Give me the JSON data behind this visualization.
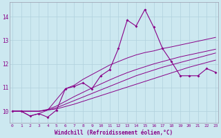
{
  "background_color": "#cce8f0",
  "line_color": "#880088",
  "grid_color": "#b0d0dc",
  "xlabel": "Windchill (Refroidissement éolien,°C)",
  "ylim": [
    9.5,
    14.6
  ],
  "xlim": [
    -0.3,
    23.3
  ],
  "yticks": [
    10,
    11,
    12,
    13,
    14
  ],
  "xticks": [
    0,
    1,
    2,
    3,
    4,
    5,
    6,
    7,
    8,
    9,
    10,
    11,
    12,
    13,
    14,
    15,
    16,
    17,
    18,
    19,
    20,
    21,
    22,
    23
  ],
  "series": [
    {
      "x": [
        0,
        1,
        2,
        3,
        4,
        5,
        6,
        7,
        8,
        9,
        10,
        11,
        12,
        13,
        14,
        15,
        16,
        17,
        18,
        19,
        20,
        21,
        22,
        23
      ],
      "y": [
        10.0,
        10.0,
        9.8,
        9.9,
        9.75,
        10.05,
        10.95,
        11.05,
        11.2,
        10.95,
        11.5,
        11.75,
        12.65,
        13.85,
        13.6,
        14.3,
        13.55,
        12.65,
        12.1,
        11.5,
        11.5,
        11.5,
        11.8,
        11.65
      ],
      "marker": true
    },
    {
      "x": [
        0,
        1,
        2,
        3,
        4,
        5,
        6,
        7,
        8,
        9,
        10,
        11,
        12,
        13,
        14,
        15,
        16,
        17,
        18,
        19,
        20,
        21,
        22,
        23
      ],
      "y": [
        10.0,
        10.0,
        10.0,
        10.0,
        10.05,
        10.1,
        10.2,
        10.3,
        10.42,
        10.54,
        10.66,
        10.78,
        10.9,
        11.02,
        11.14,
        11.26,
        11.38,
        11.5,
        11.62,
        11.74,
        11.86,
        11.96,
        12.06,
        12.16
      ],
      "marker": false
    },
    {
      "x": [
        0,
        1,
        2,
        3,
        4,
        5,
        6,
        7,
        8,
        9,
        10,
        11,
        12,
        13,
        14,
        15,
        16,
        17,
        18,
        19,
        20,
        21,
        22,
        23
      ],
      "y": [
        10.0,
        10.0,
        10.0,
        10.0,
        10.05,
        10.15,
        10.3,
        10.45,
        10.6,
        10.75,
        10.9,
        11.05,
        11.2,
        11.35,
        11.5,
        11.62,
        11.74,
        11.86,
        11.96,
        12.06,
        12.16,
        12.26,
        12.36,
        12.46
      ],
      "marker": false
    },
    {
      "x": [
        0,
        1,
        2,
        3,
        4,
        5,
        6,
        7,
        8,
        9,
        10,
        11,
        12,
        13,
        14,
        15,
        16,
        17,
        18,
        19,
        20,
        21,
        22,
        23
      ],
      "y": [
        10.0,
        10.0,
        10.0,
        10.0,
        10.08,
        10.22,
        10.42,
        10.62,
        10.8,
        10.98,
        11.15,
        11.32,
        11.48,
        11.63,
        11.76,
        11.88,
        12.0,
        12.1,
        12.2,
        12.3,
        12.38,
        12.46,
        12.54,
        12.62
      ],
      "marker": false
    },
    {
      "x": [
        0,
        1,
        2,
        3,
        4,
        5,
        6,
        7,
        8,
        9,
        10,
        11,
        12,
        13,
        14,
        15,
        16,
        17,
        18,
        19,
        20,
        21,
        22,
        23
      ],
      "y": [
        10.0,
        10.0,
        9.8,
        9.9,
        10.05,
        10.5,
        10.95,
        11.1,
        11.35,
        11.55,
        11.75,
        11.95,
        12.1,
        12.25,
        12.38,
        12.48,
        12.55,
        12.65,
        12.72,
        12.8,
        12.88,
        12.96,
        13.04,
        13.12
      ],
      "marker": false
    }
  ]
}
